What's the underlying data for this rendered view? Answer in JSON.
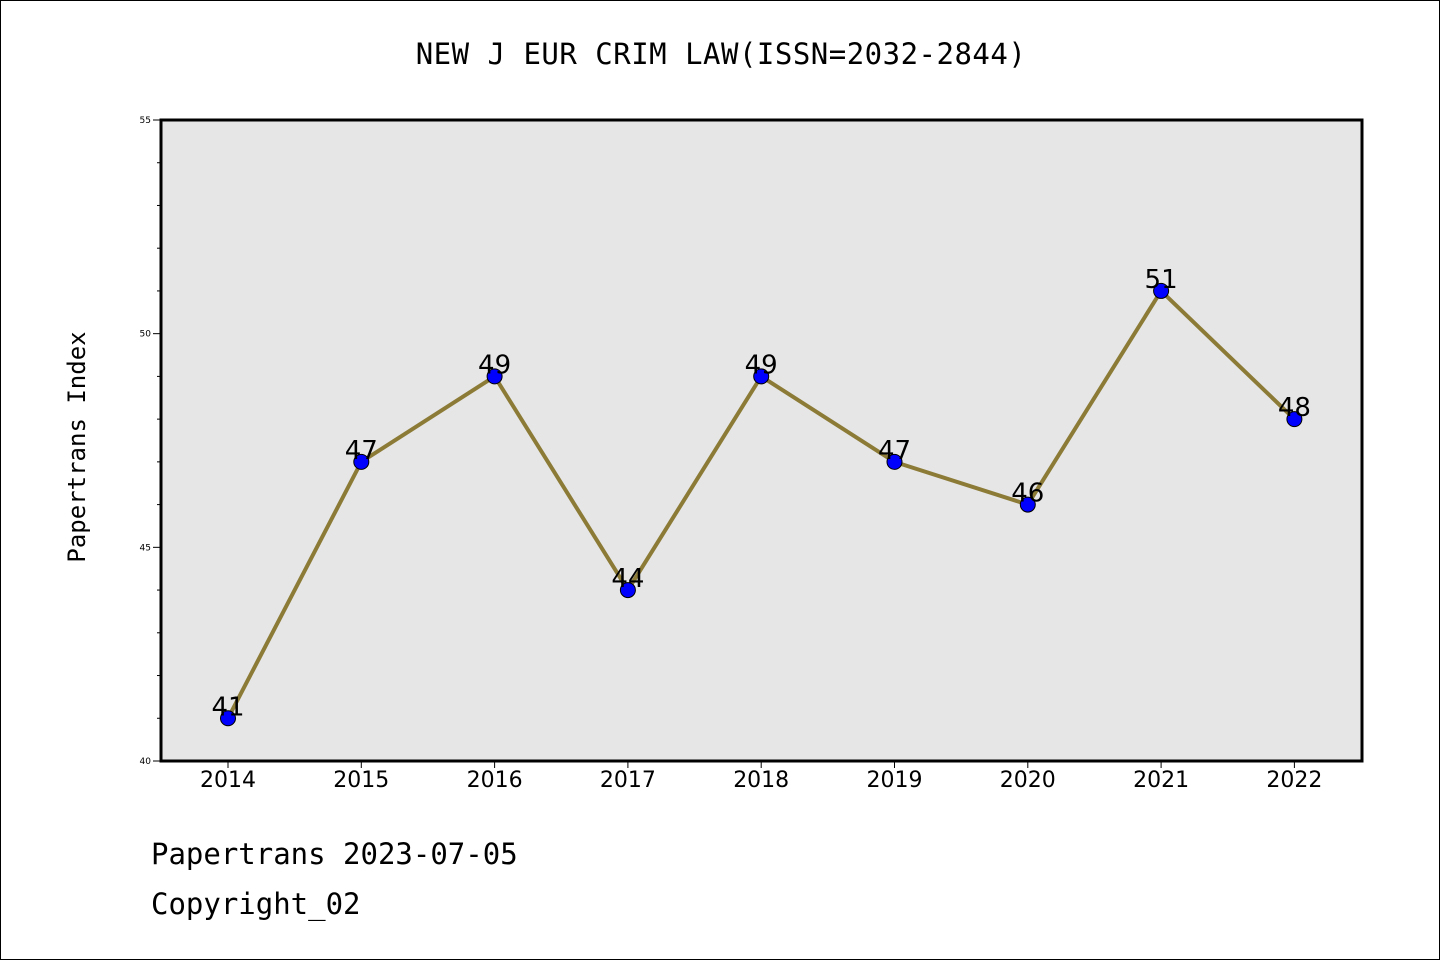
{
  "chart_data": {
    "type": "line",
    "title": "NEW J EUR CRIM LAW(ISSN=2032-2844)",
    "xlabel": "",
    "ylabel": "Papertrans Index",
    "categories": [
      "2014",
      "2015",
      "2016",
      "2017",
      "2018",
      "2019",
      "2020",
      "2021",
      "2022"
    ],
    "values": [
      41,
      47,
      49,
      44,
      49,
      47,
      46,
      51,
      48
    ],
    "data_labels": [
      "41",
      "47",
      "49",
      "44",
      "49",
      "47",
      "46",
      "51",
      "48"
    ],
    "ylim": [
      40,
      55
    ],
    "yticks": [
      "40",
      "45",
      "50",
      "55"
    ],
    "grid": false,
    "legend": "none",
    "colors": {
      "line": "#8c7b37",
      "marker": "#0000ff",
      "plot_background": "#e6e6e6"
    }
  },
  "footer": {
    "line1": "Papertrans 2023-07-05",
    "line2": "Copyright_02"
  }
}
